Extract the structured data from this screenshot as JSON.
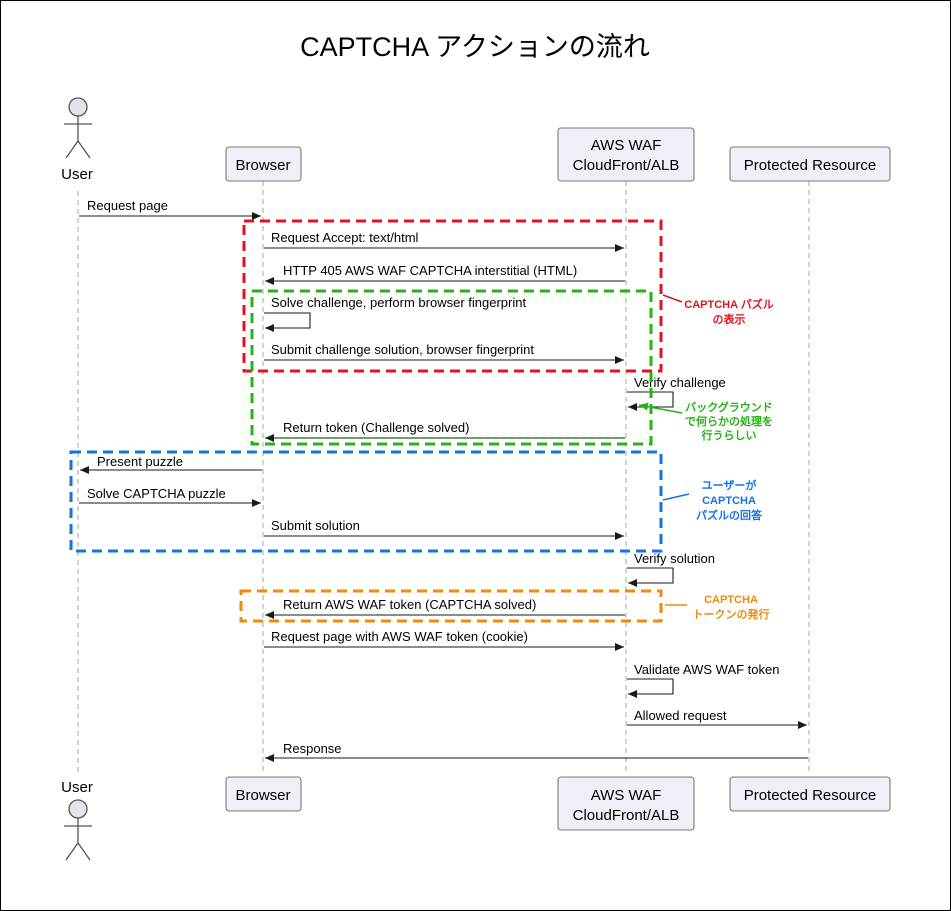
{
  "title": "CAPTCHA アクションの流れ",
  "participants": {
    "user": "User",
    "browser": "Browser",
    "waf_line1": "AWS WAF",
    "waf_line2": "CloudFront/ALB",
    "resource": "Protected Resource"
  },
  "messages": [
    "Request page",
    "Request Accept: text/html",
    "HTTP 405 AWS WAF CAPTCHA interstitial (HTML)",
    "Solve challenge, perform browser fingerprint",
    "Submit challenge solution, browser fingerprint",
    "Verify challenge",
    "Return token (Challenge solved)",
    "Present puzzle",
    "Solve CAPTCHA puzzle",
    "Submit solution",
    "Verify solution",
    "Return AWS WAF token (CAPTCHA solved)",
    "Request page with AWS WAF token (cookie)",
    "Validate AWS WAF token",
    "Allowed request",
    "Response"
  ],
  "annotations": {
    "red": {
      "lines": [
        "CAPTCHA パズル",
        "の表示"
      ],
      "color": "#e0141e"
    },
    "green": {
      "lines": [
        "バックグラウンド",
        "で何らかの処理を",
        "行うらしい"
      ],
      "color": "#22b314"
    },
    "blue": {
      "lines": [
        "ユーザーが",
        "CAPTCHA",
        "パズルの回答"
      ],
      "color": "#1473e6"
    },
    "orange": {
      "lines": [
        "CAPTCHA",
        "トークンの発行"
      ],
      "color": "#f08a0c"
    }
  }
}
